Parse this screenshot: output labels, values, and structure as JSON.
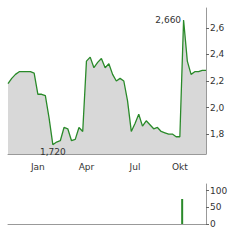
{
  "chart_data": [
    {
      "type": "line",
      "categories": [
        null,
        null,
        null,
        null,
        null,
        null,
        null,
        null,
        "Jan",
        null,
        null,
        null,
        null,
        null,
        null,
        null,
        null,
        null,
        null,
        null,
        null,
        "Apr",
        null,
        null,
        null,
        null,
        null,
        null,
        null,
        null,
        null,
        null,
        null,
        null,
        "Jul",
        null,
        null,
        null,
        null,
        null,
        null,
        null,
        null,
        null,
        null,
        null,
        "Okt",
        null,
        null,
        null,
        null,
        null,
        null,
        null
      ],
      "values": [
        2.18,
        2.22,
        2.25,
        2.27,
        2.27,
        2.27,
        2.27,
        2.26,
        2.1,
        2.1,
        2.09,
        1.92,
        1.72,
        1.74,
        1.75,
        1.85,
        1.84,
        1.75,
        1.76,
        1.85,
        1.82,
        2.35,
        2.38,
        2.3,
        2.34,
        2.37,
        2.3,
        2.33,
        2.25,
        2.2,
        2.22,
        2.2,
        2.05,
        1.82,
        1.88,
        1.95,
        1.86,
        1.9,
        1.87,
        1.84,
        1.85,
        1.82,
        1.81,
        1.8,
        1.8,
        1.78,
        1.78,
        2.66,
        2.35,
        2.25,
        2.27,
        2.27,
        2.28,
        2.28
      ],
      "color": "#2a8a2a",
      "ylim": [
        1.65,
        2.75
      ],
      "yticks": [
        {
          "value": 1.8,
          "label": "1,8"
        },
        {
          "value": 2.0,
          "label": "2,0"
        },
        {
          "value": 2.2,
          "label": "2,2"
        },
        {
          "value": 2.4,
          "label": "2,4"
        },
        {
          "value": 2.6,
          "label": "2,6"
        }
      ],
      "grid": false,
      "annotations": [
        {
          "text": "2,660",
          "index": 47,
          "value": 2.66
        },
        {
          "text": "1,720",
          "index": 12,
          "value": 1.72
        }
      ]
    },
    {
      "type": "bar",
      "categories": [
        null,
        null,
        null,
        null,
        null,
        null,
        null,
        null,
        "Jan",
        null,
        null,
        null,
        null,
        null,
        null,
        null,
        null,
        null,
        null,
        null,
        null,
        "Apr",
        null,
        null,
        null,
        null,
        null,
        null,
        null,
        null,
        null,
        null,
        null,
        null,
        "Jul",
        null,
        null,
        null,
        null,
        null,
        null,
        null,
        null,
        null,
        null,
        null,
        "Okt",
        null,
        null,
        null,
        null,
        null,
        null,
        null
      ],
      "values": [
        0,
        0,
        0,
        0,
        0,
        0,
        0,
        0,
        0,
        0,
        0,
        0,
        0,
        0,
        0,
        0,
        0,
        0,
        0,
        0,
        0,
        0,
        0,
        0,
        0,
        0,
        0,
        0,
        0,
        0,
        0,
        0,
        0,
        0,
        0,
        0,
        0,
        0,
        0,
        0,
        0,
        0,
        0,
        0,
        0,
        0,
        0,
        75,
        0,
        0,
        0,
        0,
        0,
        0
      ],
      "color": "#2a8a2a",
      "ylim": [
        0,
        120
      ],
      "yticks": [
        0,
        50,
        100
      ],
      "grid": false,
      "tick_labels": "y"
    }
  ]
}
